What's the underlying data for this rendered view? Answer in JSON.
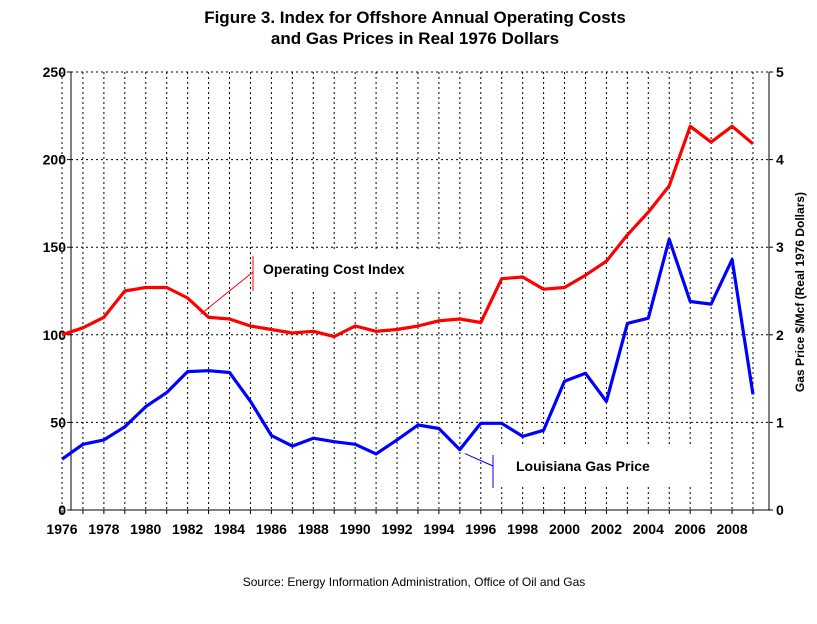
{
  "chart_data": {
    "type": "line",
    "title": [
      "Figure 3. Index for Offshore Annual Operating Costs",
      "and Gas Prices in Real 1976 Dollars"
    ],
    "source": "Source: Energy Information Administration, Office of Oil and Gas",
    "y_right_label": "Gas Price $/Mcf (Real 1976 Dollars)",
    "x": [
      1976,
      1977,
      1978,
      1979,
      1980,
      1981,
      1982,
      1983,
      1984,
      1985,
      1986,
      1987,
      1988,
      1989,
      1990,
      1991,
      1992,
      1993,
      1994,
      1995,
      1996,
      1997,
      1998,
      1999,
      2000,
      2001,
      2002,
      2003,
      2004,
      2005,
      2006,
      2007,
      2008,
      2009
    ],
    "x_tick_labels": [
      "1976",
      "1978",
      "1980",
      "1982",
      "1984",
      "1986",
      "1988",
      "1990",
      "1992",
      "1994",
      "1996",
      "1998",
      "2000",
      "2002",
      "2004",
      "2006",
      "2008"
    ],
    "xlim": [
      1976,
      2009
    ],
    "ylim_left": [
      0,
      250
    ],
    "y_left_ticks": [
      0,
      50,
      100,
      150,
      200,
      250
    ],
    "ylim_right": [
      0,
      5
    ],
    "y_right_ticks": [
      0,
      1,
      2,
      3,
      4,
      5
    ],
    "grid": true,
    "series": [
      {
        "name": "Operating Cost Index",
        "axis": "left",
        "color": "#ff0000",
        "values": [
          100,
          104,
          110,
          125,
          127,
          127,
          121,
          110,
          109,
          105,
          103,
          101,
          102,
          99,
          105,
          102,
          103,
          105,
          108,
          109,
          107,
          132,
          133,
          126,
          127,
          134,
          142,
          157,
          170,
          185,
          219,
          210,
          219,
          209
        ]
      },
      {
        "name": "Louisiana Gas  Price",
        "axis": "right",
        "color": "#0000ff",
        "values": [
          0.58,
          0.75,
          0.8,
          0.95,
          1.18,
          1.34,
          1.58,
          1.59,
          1.57,
          1.24,
          0.85,
          0.73,
          0.82,
          0.78,
          0.75,
          0.64,
          0.8,
          0.97,
          0.93,
          0.69,
          0.99,
          0.99,
          0.84,
          0.91,
          1.47,
          1.56,
          1.24,
          2.13,
          2.19,
          3.09,
          2.38,
          2.35,
          2.86,
          1.32
        ]
      }
    ],
    "annotations": [
      {
        "text": "Operating Cost Index",
        "series": "Operating Cost Index"
      },
      {
        "text": "Louisiana Gas  Price",
        "series": "Louisiana Gas  Price"
      }
    ]
  }
}
